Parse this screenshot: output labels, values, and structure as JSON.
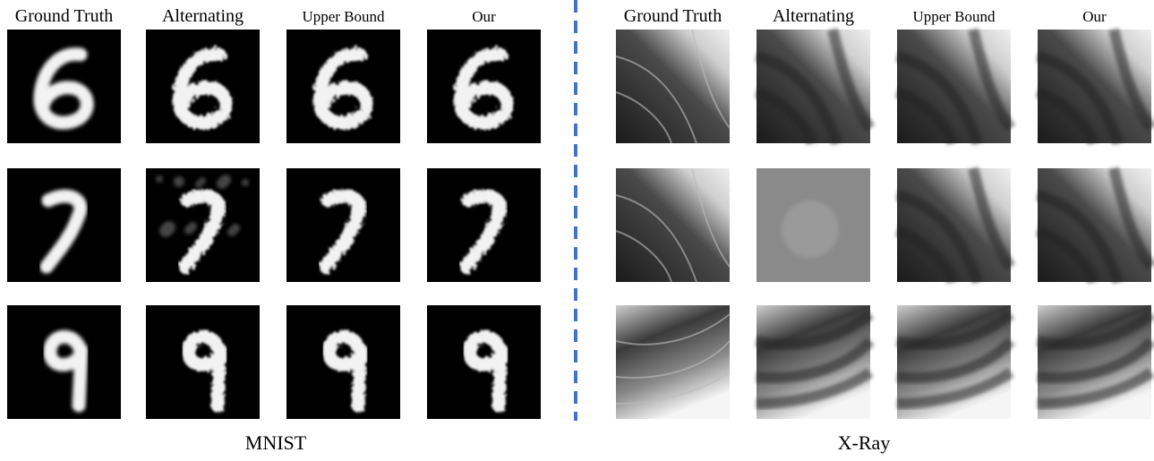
{
  "panels": [
    {
      "caption": "MNIST",
      "columns": [
        "Ground Truth",
        "Alternating",
        "Upper Bound",
        "Our"
      ]
    },
    {
      "caption": "X-Ray",
      "columns": [
        "Ground Truth",
        "Alternating",
        "Upper Bound",
        "Our"
      ]
    }
  ]
}
